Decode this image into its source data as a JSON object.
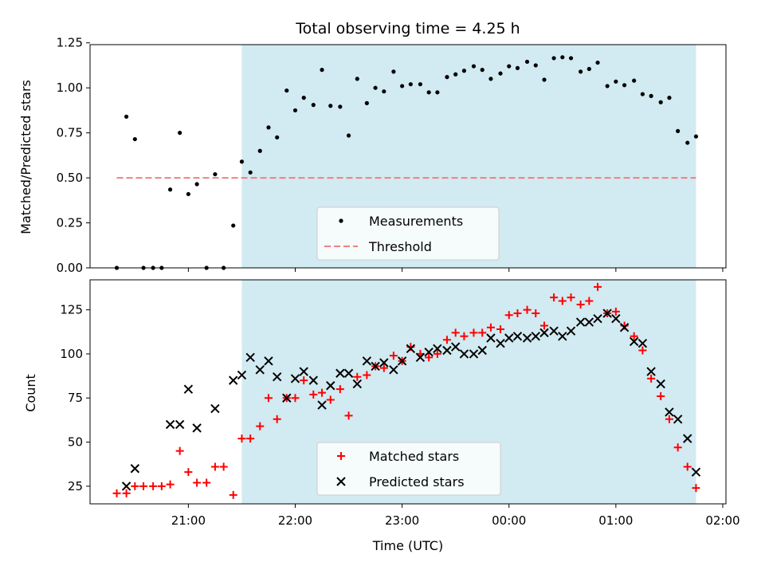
{
  "chart_data": [
    {
      "type": "scatter",
      "title": "Total observing time = 4.25 h",
      "xlabel": "",
      "ylabel": "Matched/Predicted stars",
      "xlim_hours": [
        20.08,
        26.03
      ],
      "ylim": [
        0,
        1.24
      ],
      "yticks": [
        0,
        0.25,
        0.5,
        0.75,
        1.0,
        1.25
      ],
      "ytick_labels": [
        "0.00",
        "0.25",
        "0.50",
        "0.75",
        "1.00",
        "1.25"
      ],
      "shaded_region_hours": [
        21.5,
        25.75
      ],
      "shaded_color": "#add8e6",
      "legend_position": "lower-center",
      "series": [
        {
          "name": "Measurements",
          "marker": "dot",
          "color": "#000000",
          "points": [
            [
              20.33,
              0.0
            ],
            [
              20.42,
              0.84
            ],
            [
              20.5,
              0.715
            ],
            [
              20.58,
              0.0
            ],
            [
              20.67,
              0.0
            ],
            [
              20.75,
              0.0
            ],
            [
              20.83,
              0.435
            ],
            [
              20.92,
              0.75
            ],
            [
              21.0,
              0.41
            ],
            [
              21.08,
              0.465
            ],
            [
              21.17,
              0.0
            ],
            [
              21.25,
              0.52
            ],
            [
              21.33,
              0.0
            ],
            [
              21.42,
              0.235
            ],
            [
              21.5,
              0.59
            ],
            [
              21.58,
              0.53
            ],
            [
              21.67,
              0.65
            ],
            [
              21.75,
              0.78
            ],
            [
              21.83,
              0.725
            ],
            [
              21.92,
              0.985
            ],
            [
              22.0,
              0.875
            ],
            [
              22.08,
              0.945
            ],
            [
              22.17,
              0.905
            ],
            [
              22.25,
              1.1
            ],
            [
              22.33,
              0.9
            ],
            [
              22.42,
              0.895
            ],
            [
              22.5,
              0.735
            ],
            [
              22.58,
              1.05
            ],
            [
              22.67,
              0.915
            ],
            [
              22.75,
              1.0
            ],
            [
              22.83,
              0.98
            ],
            [
              22.92,
              1.09
            ],
            [
              23.0,
              1.01
            ],
            [
              23.08,
              1.02
            ],
            [
              23.17,
              1.02
            ],
            [
              23.25,
              0.975
            ],
            [
              23.33,
              0.975
            ],
            [
              23.42,
              1.06
            ],
            [
              23.5,
              1.075
            ],
            [
              23.58,
              1.095
            ],
            [
              23.67,
              1.12
            ],
            [
              23.75,
              1.1
            ],
            [
              23.83,
              1.05
            ],
            [
              23.92,
              1.08
            ],
            [
              24.0,
              1.12
            ],
            [
              24.08,
              1.11
            ],
            [
              24.17,
              1.145
            ],
            [
              24.25,
              1.125
            ],
            [
              24.33,
              1.045
            ],
            [
              24.42,
              1.165
            ],
            [
              24.5,
              1.17
            ],
            [
              24.58,
              1.165
            ],
            [
              24.67,
              1.09
            ],
            [
              24.75,
              1.105
            ],
            [
              24.83,
              1.14
            ],
            [
              24.92,
              1.01
            ],
            [
              25.0,
              1.035
            ],
            [
              25.08,
              1.015
            ],
            [
              25.17,
              1.04
            ],
            [
              25.25,
              0.965
            ],
            [
              25.33,
              0.955
            ],
            [
              25.42,
              0.92
            ],
            [
              25.5,
              0.945
            ],
            [
              25.58,
              0.76
            ],
            [
              25.67,
              0.695
            ],
            [
              25.75,
              0.73
            ]
          ]
        },
        {
          "name": "Threshold",
          "marker": "dashed-line",
          "color": "#f08080",
          "points": [
            [
              20.33,
              0.5
            ],
            [
              25.75,
              0.5
            ]
          ]
        }
      ]
    },
    {
      "type": "scatter",
      "title": "",
      "xlabel": "Time (UTC)",
      "ylabel": "Count",
      "xlim_hours": [
        20.08,
        26.03
      ],
      "ylim": [
        15,
        142
      ],
      "yticks": [
        25,
        50,
        75,
        100,
        125
      ],
      "ytick_labels": [
        "25",
        "50",
        "75",
        "100",
        "125"
      ],
      "xticks_hours": [
        21,
        22,
        23,
        24,
        25,
        26
      ],
      "xtick_labels": [
        "21:00",
        "22:00",
        "23:00",
        "00:00",
        "01:00",
        "02:00"
      ],
      "shaded_region_hours": [
        21.5,
        25.75
      ],
      "shaded_color": "#add8e6",
      "legend_position": "lower-center",
      "series": [
        {
          "name": "Matched stars",
          "marker": "plus",
          "color": "#ff0000",
          "points": [
            [
              20.33,
              21
            ],
            [
              20.42,
              21
            ],
            [
              20.5,
              25
            ],
            [
              20.58,
              25
            ],
            [
              20.67,
              25
            ],
            [
              20.75,
              25
            ],
            [
              20.83,
              26
            ],
            [
              20.92,
              45
            ],
            [
              21.0,
              33
            ],
            [
              21.08,
              27
            ],
            [
              21.17,
              27
            ],
            [
              21.25,
              36
            ],
            [
              21.33,
              36
            ],
            [
              21.42,
              20
            ],
            [
              21.5,
              52
            ],
            [
              21.58,
              52
            ],
            [
              21.67,
              59
            ],
            [
              21.75,
              75
            ],
            [
              21.83,
              63
            ],
            [
              21.92,
              75
            ],
            [
              22.0,
              75
            ],
            [
              22.08,
              85
            ],
            [
              22.17,
              77
            ],
            [
              22.25,
              78
            ],
            [
              22.33,
              74
            ],
            [
              22.42,
              80
            ],
            [
              22.5,
              65
            ],
            [
              22.58,
              87
            ],
            [
              22.67,
              88
            ],
            [
              22.75,
              93
            ],
            [
              22.83,
              92
            ],
            [
              22.92,
              99
            ],
            [
              23.0,
              96
            ],
            [
              23.08,
              104
            ],
            [
              23.17,
              100
            ],
            [
              23.25,
              98
            ],
            [
              23.33,
              100
            ],
            [
              23.42,
              108
            ],
            [
              23.5,
              112
            ],
            [
              23.58,
              110
            ],
            [
              23.67,
              112
            ],
            [
              23.75,
              112
            ],
            [
              23.83,
              115
            ],
            [
              23.92,
              114
            ],
            [
              24.0,
              122
            ],
            [
              24.08,
              123
            ],
            [
              24.17,
              125
            ],
            [
              24.25,
              123
            ],
            [
              24.33,
              116
            ],
            [
              24.42,
              132
            ],
            [
              24.5,
              130
            ],
            [
              24.58,
              132
            ],
            [
              24.67,
              128
            ],
            [
              24.75,
              130
            ],
            [
              24.83,
              138
            ],
            [
              24.92,
              123
            ],
            [
              25.0,
              124
            ],
            [
              25.08,
              116
            ],
            [
              25.17,
              110
            ],
            [
              25.25,
              102
            ],
            [
              25.33,
              86
            ],
            [
              25.42,
              76
            ],
            [
              25.5,
              63
            ],
            [
              25.58,
              47
            ],
            [
              25.67,
              36
            ],
            [
              25.75,
              24
            ]
          ]
        },
        {
          "name": "Predicted stars",
          "marker": "x",
          "color": "#000000",
          "points": [
            [
              20.42,
              25
            ],
            [
              20.5,
              35
            ],
            [
              20.83,
              60
            ],
            [
              20.92,
              60
            ],
            [
              21.0,
              80
            ],
            [
              21.08,
              58
            ],
            [
              21.25,
              69
            ],
            [
              21.42,
              85
            ],
            [
              21.5,
              88
            ],
            [
              21.58,
              98
            ],
            [
              21.67,
              91
            ],
            [
              21.75,
              96
            ],
            [
              21.83,
              87
            ],
            [
              21.92,
              75
            ],
            [
              22.0,
              86
            ],
            [
              22.08,
              90
            ],
            [
              22.17,
              85
            ],
            [
              22.25,
              71
            ],
            [
              22.33,
              82
            ],
            [
              22.42,
              89
            ],
            [
              22.5,
              89
            ],
            [
              22.58,
              83
            ],
            [
              22.67,
              96
            ],
            [
              22.75,
              93
            ],
            [
              22.83,
              95
            ],
            [
              22.92,
              91
            ],
            [
              23.0,
              96
            ],
            [
              23.08,
              103
            ],
            [
              23.17,
              98
            ],
            [
              23.25,
              101
            ],
            [
              23.33,
              103
            ],
            [
              23.42,
              102
            ],
            [
              23.5,
              104
            ],
            [
              23.58,
              100
            ],
            [
              23.67,
              100
            ],
            [
              23.75,
              102
            ],
            [
              23.83,
              109
            ],
            [
              23.92,
              106
            ],
            [
              24.0,
              109
            ],
            [
              24.08,
              110
            ],
            [
              24.17,
              109
            ],
            [
              24.25,
              110
            ],
            [
              24.33,
              112
            ],
            [
              24.42,
              113
            ],
            [
              24.5,
              110
            ],
            [
              24.58,
              113
            ],
            [
              24.67,
              118
            ],
            [
              24.75,
              118
            ],
            [
              24.83,
              120
            ],
            [
              24.92,
              123
            ],
            [
              25.0,
              120
            ],
            [
              25.08,
              115
            ],
            [
              25.17,
              107
            ],
            [
              25.25,
              106
            ],
            [
              25.33,
              90
            ],
            [
              25.42,
              83
            ],
            [
              25.5,
              67
            ],
            [
              25.58,
              63
            ],
            [
              25.67,
              52
            ],
            [
              25.75,
              33
            ]
          ]
        }
      ]
    }
  ]
}
